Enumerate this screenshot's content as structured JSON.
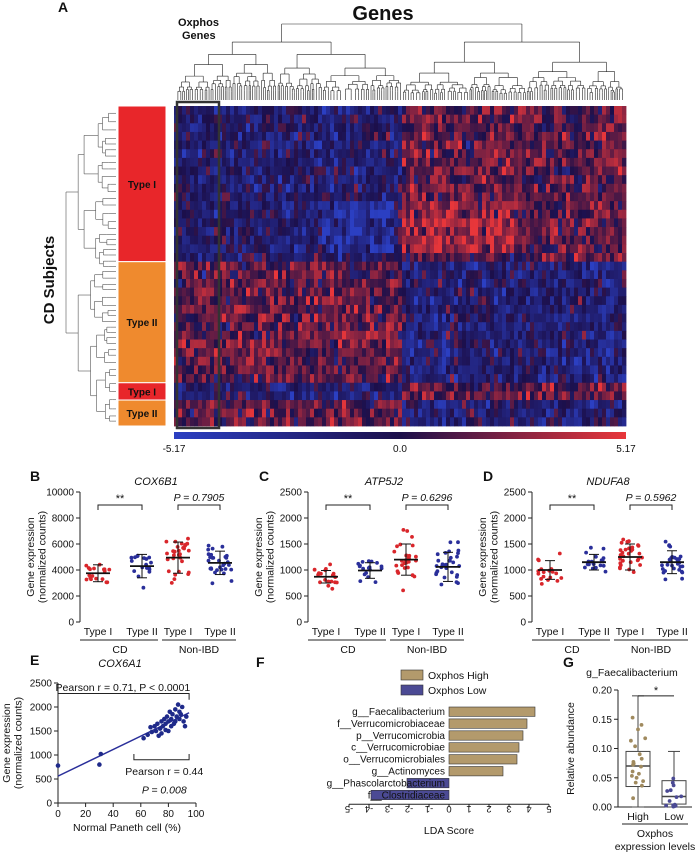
{
  "panelA": {
    "letter": "A",
    "genes_title": "Genes",
    "oxphos_label_1": "Oxphos",
    "oxphos_label_2": "Genes",
    "cd_subjects_label": "CD Subjects",
    "groups": [
      {
        "label": "Type I",
        "rows": 18,
        "color": "#e8262a"
      },
      {
        "label": "Type II",
        "rows": 14,
        "color": "#ef8a2e"
      },
      {
        "label": "Type I",
        "rows": 2,
        "color": "#e8262a"
      },
      {
        "label": "Type II",
        "rows": 3,
        "color": "#ef8a2e"
      }
    ],
    "colorbar": {
      "min": "-5.17",
      "mid": "0.0",
      "max": "5.17",
      "low_color": "#2b3fc2",
      "mid_color": "#1c0f4a",
      "high_color": "#e8363a"
    }
  },
  "chart_data": [
    {
      "panel": "B",
      "type": "scatter",
      "title": "COX6B1",
      "ylabel": "Gene expression (normalized counts)",
      "yticks": [
        "0",
        "2000",
        "4000",
        "6000",
        "8000",
        "10000"
      ],
      "ylim": [
        0,
        10000
      ],
      "categories": [
        "Type I",
        "Type II",
        "Type I",
        "Type II"
      ],
      "groups": [
        "CD",
        "Non-IBD"
      ],
      "means": [
        3750,
        4300,
        4950,
        4550
      ],
      "sds": [
        650,
        900,
        1200,
        900
      ],
      "point_colors": [
        "#d9262b",
        "#2a2f9a",
        "#d9262b",
        "#2a2f9a"
      ],
      "annotations": [
        "**",
        "P = 0.7905"
      ]
    },
    {
      "panel": "C",
      "type": "scatter",
      "title": "ATP5J2",
      "ylabel": "Gene expression (normalized counts)",
      "yticks": [
        "0",
        "500",
        "1000",
        "1500",
        "2000",
        "2500"
      ],
      "ylim": [
        0,
        2500
      ],
      "categories": [
        "Type I",
        "Type II",
        "Type I",
        "Type II"
      ],
      "groups": [
        "CD",
        "Non-IBD"
      ],
      "means": [
        870,
        990,
        1200,
        1060
      ],
      "sds": [
        120,
        150,
        300,
        280
      ],
      "point_colors": [
        "#d9262b",
        "#2a2f9a",
        "#d9262b",
        "#2a2f9a"
      ],
      "annotations": [
        "**",
        "P = 0.6296"
      ]
    },
    {
      "panel": "D",
      "type": "scatter",
      "title": "NDUFA8",
      "ylabel": "Gene expression (normalized counts)",
      "yticks": [
        "0",
        "500",
        "1000",
        "1500",
        "2000",
        "2500"
      ],
      "ylim": [
        0,
        2500
      ],
      "categories": [
        "Type I",
        "Type II",
        "Type I",
        "Type II"
      ],
      "groups": [
        "CD",
        "Non-IBD"
      ],
      "means": [
        1000,
        1150,
        1250,
        1150
      ],
      "sds": [
        180,
        150,
        250,
        220
      ],
      "point_colors": [
        "#d9262b",
        "#2a2f9a",
        "#d9262b",
        "#2a2f9a"
      ],
      "annotations": [
        "**",
        "P = 0.5962"
      ]
    },
    {
      "panel": "E",
      "type": "scatter",
      "title": "COX6A1",
      "xlabel": "Normal Paneth cell (%)",
      "ylabel": "Gene expression (normalized counts)",
      "xticks": [
        "0",
        "20",
        "40",
        "60",
        "80",
        "100"
      ],
      "xlim": [
        0,
        100
      ],
      "yticks": [
        "0",
        "500",
        "1000",
        "1500",
        "2000",
        "2500"
      ],
      "ylim": [
        0,
        2500
      ],
      "points": [
        [
          0,
          780
        ],
        [
          31,
          1020
        ],
        [
          30,
          800
        ],
        [
          62,
          1350
        ],
        [
          65,
          1420
        ],
        [
          67,
          1580
        ],
        [
          68,
          1480
        ],
        [
          70,
          1600
        ],
        [
          71,
          1500
        ],
        [
          72,
          1650
        ],
        [
          73,
          1400
        ],
        [
          74,
          1550
        ],
        [
          75,
          1700
        ],
        [
          75,
          1450
        ],
        [
          76,
          1600
        ],
        [
          77,
          1750
        ],
        [
          78,
          1520
        ],
        [
          78,
          1650
        ],
        [
          79,
          1800
        ],
        [
          80,
          1500
        ],
        [
          80,
          1700
        ],
        [
          81,
          1900
        ],
        [
          82,
          1600
        ],
        [
          82,
          1750
        ],
        [
          83,
          1850
        ],
        [
          84,
          1650
        ],
        [
          85,
          1950
        ],
        [
          85,
          1700
        ],
        [
          86,
          1800
        ],
        [
          87,
          2050
        ],
        [
          88,
          1750
        ],
        [
          88,
          1900
        ],
        [
          89,
          1850
        ],
        [
          90,
          2000
        ],
        [
          91,
          1700
        ],
        [
          92,
          1600
        ],
        [
          93,
          1800
        ]
      ],
      "annotations": [
        "Pearson r = 0.71, P < 0.0001",
        "Pearson r = 0.44",
        "P = 0.008"
      ]
    },
    {
      "panel": "F",
      "type": "bar",
      "xlabel": "LDA Score",
      "xticks": [
        "-5",
        "-4",
        "-3",
        "-2",
        "-1",
        "0",
        "1",
        "2",
        "3",
        "4",
        "5"
      ],
      "xlim": [
        -5,
        5
      ],
      "categories": [
        "g__Faecalibacterium",
        "f__Verrucomicrobiaceae",
        "p__Verrucomicrobia",
        "c__Verrucomicrobiae",
        "o__Verrucomicrobiales",
        "g__Actinomyces",
        "g__Phascolarctobacterium",
        "f__Clostridiaceae"
      ],
      "values": [
        4.3,
        3.9,
        3.7,
        3.5,
        3.4,
        2.7,
        -2.1,
        -3.9
      ],
      "legend": [
        {
          "name": "Oxphos High",
          "color": "#b39a6c"
        },
        {
          "name": "Oxphos Low",
          "color": "#4b4a94"
        }
      ]
    },
    {
      "panel": "G",
      "type": "box",
      "title": "g_Faecalibacterium",
      "xlabel": "Oxphos expression levels",
      "ylabel": "Relative abundance",
      "categories": [
        "High",
        "Low"
      ],
      "yticks": [
        "0.00",
        "0.05",
        "0.10",
        "0.15",
        "0.20"
      ],
      "ylim": [
        0,
        0.2
      ],
      "boxes": [
        {
          "min": 0.0,
          "q1": 0.035,
          "median": 0.07,
          "q3": 0.095,
          "max": 0.19
        },
        {
          "min": 0.0,
          "q1": 0.005,
          "median": 0.018,
          "q3": 0.045,
          "max": 0.095
        }
      ],
      "annotations": [
        "*"
      ]
    }
  ],
  "labels": {
    "B": "B",
    "C": "C",
    "D": "D",
    "E": "E",
    "F": "F",
    "G": "G",
    "cd": "CD",
    "non_ibd": "Non-IBD",
    "ylabel_line1": "Gene expression",
    "ylabel_line2": "(normalized counts)",
    "g_xlabel_line1": "Oxphos",
    "g_xlabel_line2": "expression levels"
  }
}
